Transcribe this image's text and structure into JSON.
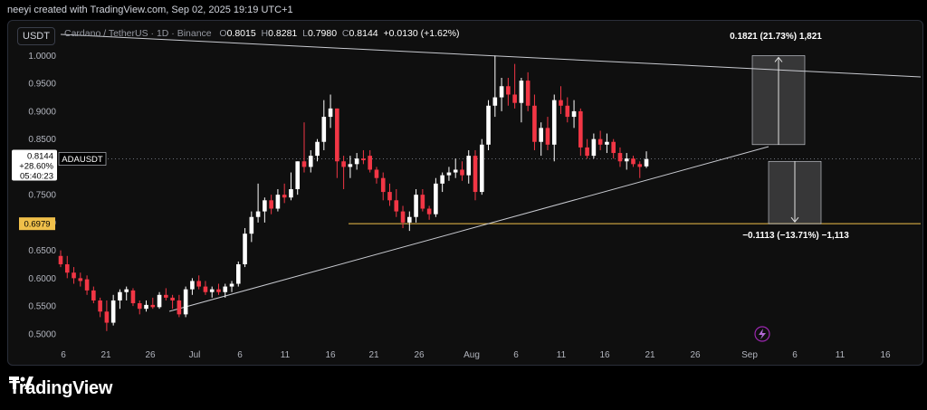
{
  "header": {
    "credit": "neeyi created with TradingView.com, Sep 02, 2025 19:19 UTC+1"
  },
  "symbol_box": "USDT",
  "legend": {
    "name": "Cardano / TetherUS · 1D · Binance",
    "o_label": "O",
    "o": "0.8015",
    "h_label": "H",
    "h": "0.8281",
    "l_label": "L",
    "l": "0.7980",
    "c_label": "C",
    "c": "0.8144",
    "change": "+0.0130 (+1.62%)"
  },
  "price_tag": {
    "price": "0.8144",
    "pct": "+28.60%",
    "timer": "05:40:23",
    "symbol": "ADAUSDT"
  },
  "level_tag": "0.6979",
  "measure_up": "0.1821 (21.73%) 1,821",
  "measure_down": "−0.1113 (−13.71%) −1,113",
  "footer": {
    "brand": "TradingView"
  },
  "colors": {
    "up": "#ffffff",
    "down": "#f23645",
    "level": "#f0c04a",
    "background": "#0f0f0f"
  },
  "chart_data": {
    "type": "candlestick",
    "y_ticks": [
      "1.0000",
      "0.9500",
      "0.9000",
      "0.8500",
      "0.8000",
      "0.7500",
      "0.7000",
      "0.6500",
      "0.6000",
      "0.5500",
      "0.5000"
    ],
    "x_ticks": [
      "6",
      "21",
      "26",
      "Jul",
      "6",
      "11",
      "16",
      "21",
      "26",
      "Aug",
      "6",
      "11",
      "16",
      "21",
      "26",
      "Sep",
      "6",
      "11",
      "16"
    ],
    "ylim": [
      0.49,
      1.03
    ],
    "horizontal_level": 0.6979,
    "candles": [
      {
        "o": 0.64,
        "h": 0.65,
        "l": 0.62,
        "c": 0.625
      },
      {
        "o": 0.625,
        "h": 0.64,
        "l": 0.6,
        "c": 0.61
      },
      {
        "o": 0.61,
        "h": 0.62,
        "l": 0.59,
        "c": 0.6
      },
      {
        "o": 0.6,
        "h": 0.61,
        "l": 0.585,
        "c": 0.595
      },
      {
        "o": 0.598,
        "h": 0.605,
        "l": 0.57,
        "c": 0.578
      },
      {
        "o": 0.578,
        "h": 0.585,
        "l": 0.555,
        "c": 0.56
      },
      {
        "o": 0.56,
        "h": 0.565,
        "l": 0.53,
        "c": 0.54
      },
      {
        "o": 0.54,
        "h": 0.56,
        "l": 0.505,
        "c": 0.52
      },
      {
        "o": 0.52,
        "h": 0.57,
        "l": 0.515,
        "c": 0.56
      },
      {
        "o": 0.56,
        "h": 0.58,
        "l": 0.545,
        "c": 0.575
      },
      {
        "o": 0.575,
        "h": 0.585,
        "l": 0.56,
        "c": 0.58
      },
      {
        "o": 0.578,
        "h": 0.582,
        "l": 0.55,
        "c": 0.555
      },
      {
        "o": 0.555,
        "h": 0.56,
        "l": 0.535,
        "c": 0.545
      },
      {
        "o": 0.545,
        "h": 0.56,
        "l": 0.54,
        "c": 0.552
      },
      {
        "o": 0.552,
        "h": 0.565,
        "l": 0.545,
        "c": 0.548
      },
      {
        "o": 0.548,
        "h": 0.575,
        "l": 0.545,
        "c": 0.57
      },
      {
        "o": 0.57,
        "h": 0.582,
        "l": 0.56,
        "c": 0.565
      },
      {
        "o": 0.565,
        "h": 0.57,
        "l": 0.545,
        "c": 0.56
      },
      {
        "o": 0.56,
        "h": 0.57,
        "l": 0.53,
        "c": 0.535
      },
      {
        "o": 0.535,
        "h": 0.585,
        "l": 0.53,
        "c": 0.58
      },
      {
        "o": 0.58,
        "h": 0.6,
        "l": 0.57,
        "c": 0.595
      },
      {
        "o": 0.595,
        "h": 0.605,
        "l": 0.58,
        "c": 0.585
      },
      {
        "o": 0.585,
        "h": 0.595,
        "l": 0.57,
        "c": 0.575
      },
      {
        "o": 0.575,
        "h": 0.585,
        "l": 0.565,
        "c": 0.58
      },
      {
        "o": 0.58,
        "h": 0.59,
        "l": 0.57,
        "c": 0.575
      },
      {
        "o": 0.575,
        "h": 0.59,
        "l": 0.565,
        "c": 0.585
      },
      {
        "o": 0.585,
        "h": 0.595,
        "l": 0.575,
        "c": 0.59
      },
      {
        "o": 0.59,
        "h": 0.63,
        "l": 0.585,
        "c": 0.625
      },
      {
        "o": 0.625,
        "h": 0.69,
        "l": 0.62,
        "c": 0.68
      },
      {
        "o": 0.68,
        "h": 0.72,
        "l": 0.665,
        "c": 0.71
      },
      {
        "o": 0.71,
        "h": 0.77,
        "l": 0.7,
        "c": 0.72
      },
      {
        "o": 0.72,
        "h": 0.745,
        "l": 0.7,
        "c": 0.74
      },
      {
        "o": 0.74,
        "h": 0.75,
        "l": 0.715,
        "c": 0.725
      },
      {
        "o": 0.725,
        "h": 0.76,
        "l": 0.72,
        "c": 0.75
      },
      {
        "o": 0.75,
        "h": 0.77,
        "l": 0.735,
        "c": 0.745
      },
      {
        "o": 0.745,
        "h": 0.79,
        "l": 0.74,
        "c": 0.76
      },
      {
        "o": 0.76,
        "h": 0.81,
        "l": 0.75,
        "c": 0.81
      },
      {
        "o": 0.81,
        "h": 0.88,
        "l": 0.79,
        "c": 0.8
      },
      {
        "o": 0.8,
        "h": 0.83,
        "l": 0.79,
        "c": 0.82
      },
      {
        "o": 0.82,
        "h": 0.85,
        "l": 0.81,
        "c": 0.845
      },
      {
        "o": 0.845,
        "h": 0.92,
        "l": 0.83,
        "c": 0.89
      },
      {
        "o": 0.89,
        "h": 0.93,
        "l": 0.87,
        "c": 0.905
      },
      {
        "o": 0.905,
        "h": 0.905,
        "l": 0.78,
        "c": 0.81
      },
      {
        "o": 0.81,
        "h": 0.82,
        "l": 0.76,
        "c": 0.8
      },
      {
        "o": 0.8,
        "h": 0.82,
        "l": 0.78,
        "c": 0.805
      },
      {
        "o": 0.805,
        "h": 0.825,
        "l": 0.795,
        "c": 0.815
      },
      {
        "o": 0.815,
        "h": 0.83,
        "l": 0.805,
        "c": 0.812
      },
      {
        "o": 0.82,
        "h": 0.83,
        "l": 0.79,
        "c": 0.795
      },
      {
        "o": 0.795,
        "h": 0.8,
        "l": 0.77,
        "c": 0.78
      },
      {
        "o": 0.78,
        "h": 0.79,
        "l": 0.74,
        "c": 0.755
      },
      {
        "o": 0.755,
        "h": 0.77,
        "l": 0.73,
        "c": 0.74
      },
      {
        "o": 0.74,
        "h": 0.76,
        "l": 0.71,
        "c": 0.72
      },
      {
        "o": 0.72,
        "h": 0.73,
        "l": 0.69,
        "c": 0.7
      },
      {
        "o": 0.7,
        "h": 0.72,
        "l": 0.685,
        "c": 0.71
      },
      {
        "o": 0.71,
        "h": 0.76,
        "l": 0.7,
        "c": 0.75
      },
      {
        "o": 0.75,
        "h": 0.76,
        "l": 0.72,
        "c": 0.725
      },
      {
        "o": 0.725,
        "h": 0.73,
        "l": 0.705,
        "c": 0.715
      },
      {
        "o": 0.715,
        "h": 0.78,
        "l": 0.71,
        "c": 0.77
      },
      {
        "o": 0.77,
        "h": 0.79,
        "l": 0.755,
        "c": 0.785
      },
      {
        "o": 0.785,
        "h": 0.8,
        "l": 0.775,
        "c": 0.79
      },
      {
        "o": 0.79,
        "h": 0.815,
        "l": 0.78,
        "c": 0.795
      },
      {
        "o": 0.795,
        "h": 0.81,
        "l": 0.775,
        "c": 0.785
      },
      {
        "o": 0.785,
        "h": 0.83,
        "l": 0.77,
        "c": 0.82
      },
      {
        "o": 0.82,
        "h": 0.83,
        "l": 0.74,
        "c": 0.755
      },
      {
        "o": 0.755,
        "h": 0.85,
        "l": 0.75,
        "c": 0.84
      },
      {
        "o": 0.84,
        "h": 0.92,
        "l": 0.83,
        "c": 0.91
      },
      {
        "o": 0.91,
        "h": 1.0,
        "l": 0.89,
        "c": 0.925
      },
      {
        "o": 0.925,
        "h": 0.96,
        "l": 0.9,
        "c": 0.945
      },
      {
        "o": 0.945,
        "h": 0.96,
        "l": 0.91,
        "c": 0.93
      },
      {
        "o": 0.93,
        "h": 0.985,
        "l": 0.905,
        "c": 0.915
      },
      {
        "o": 0.915,
        "h": 0.96,
        "l": 0.88,
        "c": 0.955
      },
      {
        "o": 0.955,
        "h": 0.97,
        "l": 0.9,
        "c": 0.91
      },
      {
        "o": 0.91,
        "h": 0.93,
        "l": 0.83,
        "c": 0.845
      },
      {
        "o": 0.845,
        "h": 0.88,
        "l": 0.82,
        "c": 0.87
      },
      {
        "o": 0.87,
        "h": 0.89,
        "l": 0.83,
        "c": 0.84
      },
      {
        "o": 0.84,
        "h": 0.93,
        "l": 0.81,
        "c": 0.92
      },
      {
        "o": 0.92,
        "h": 0.945,
        "l": 0.895,
        "c": 0.91
      },
      {
        "o": 0.91,
        "h": 0.925,
        "l": 0.88,
        "c": 0.89
      },
      {
        "o": 0.89,
        "h": 0.92,
        "l": 0.87,
        "c": 0.9
      },
      {
        "o": 0.9,
        "h": 0.905,
        "l": 0.82,
        "c": 0.835
      },
      {
        "o": 0.835,
        "h": 0.85,
        "l": 0.815,
        "c": 0.82
      },
      {
        "o": 0.82,
        "h": 0.86,
        "l": 0.815,
        "c": 0.85
      },
      {
        "o": 0.85,
        "h": 0.865,
        "l": 0.83,
        "c": 0.84
      },
      {
        "o": 0.84,
        "h": 0.86,
        "l": 0.825,
        "c": 0.845
      },
      {
        "o": 0.845,
        "h": 0.85,
        "l": 0.815,
        "c": 0.825
      },
      {
        "o": 0.825,
        "h": 0.835,
        "l": 0.8,
        "c": 0.81
      },
      {
        "o": 0.81,
        "h": 0.825,
        "l": 0.795,
        "c": 0.815
      },
      {
        "o": 0.815,
        "h": 0.82,
        "l": 0.8,
        "c": 0.805
      },
      {
        "o": 0.805,
        "h": 0.81,
        "l": 0.78,
        "c": 0.8
      },
      {
        "o": 0.801,
        "h": 0.828,
        "l": 0.798,
        "c": 0.814
      }
    ]
  }
}
